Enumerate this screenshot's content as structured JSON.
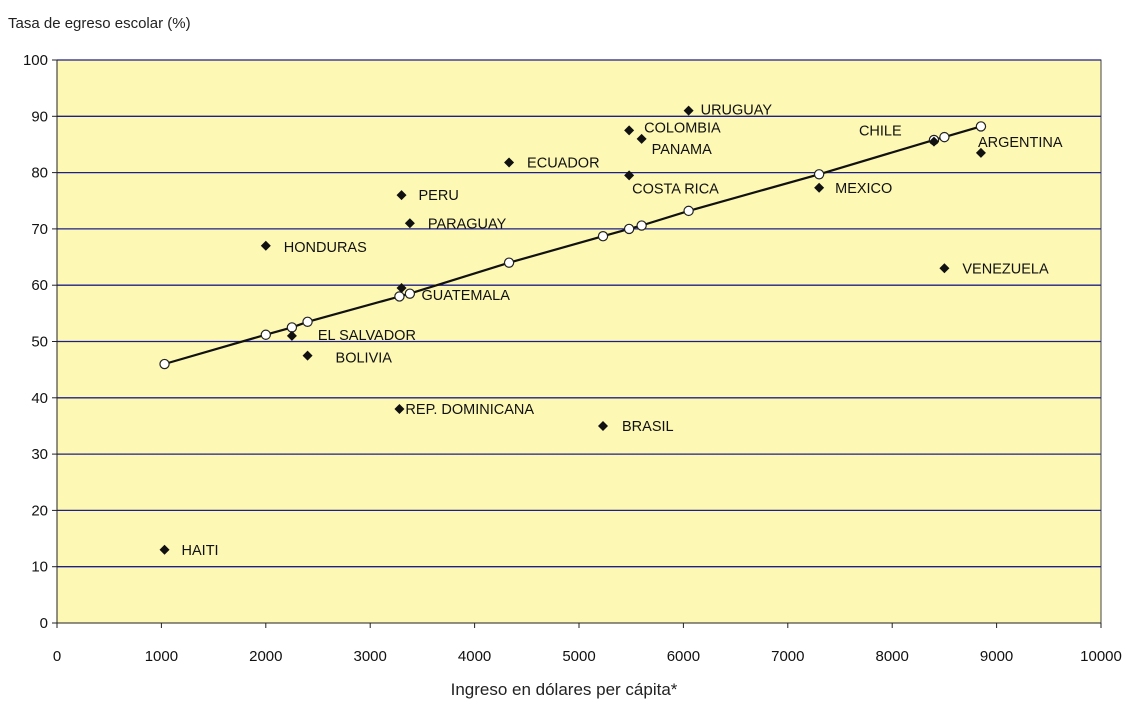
{
  "chart_data": {
    "type": "scatter",
    "title": "",
    "xlabel": "Ingreso en dólares per cápita*",
    "ylabel": "Tasa de egreso escolar (%)",
    "xlim": [
      0,
      10000
    ],
    "ylim": [
      0,
      100
    ],
    "xticks": [
      0,
      1000,
      2000,
      3000,
      4000,
      5000,
      6000,
      7000,
      8000,
      9000,
      10000
    ],
    "yticks": [
      0,
      10,
      20,
      30,
      40,
      50,
      60,
      70,
      80,
      90,
      100
    ],
    "grid": "horizontal",
    "colors": {
      "plot_background": "#fdf8b4",
      "gridline": "#1f1f8a",
      "marker": "#111111"
    },
    "series": [
      {
        "marker": "diamond",
        "points": [
          {
            "label": "URUGUAY",
            "x": 6050,
            "y": 91
          },
          {
            "label": "COLOMBIA",
            "x": 5480,
            "y": 87.5
          },
          {
            "label": "PANAMA",
            "x": 5600,
            "y": 86
          },
          {
            "label": "ECUADOR",
            "x": 4330,
            "y": 81.8
          },
          {
            "label": "COSTA RICA",
            "x": 5480,
            "y": 79.5
          },
          {
            "label": "CHILE",
            "x": 8400,
            "y": 85.5
          },
          {
            "label": "ARGENTINA",
            "x": 8850,
            "y": 83.5
          },
          {
            "label": "MEXICO",
            "x": 7300,
            "y": 77.3
          },
          {
            "label": "PERU",
            "x": 3300,
            "y": 76
          },
          {
            "label": "PARAGUAY",
            "x": 3380,
            "y": 71
          },
          {
            "label": "HONDURAS",
            "x": 2000,
            "y": 67
          },
          {
            "label": "VENEZUELA",
            "x": 8500,
            "y": 63
          },
          {
            "label": "GUATEMALA",
            "x": 3300,
            "y": 59.5
          },
          {
            "label": "EL SALVADOR",
            "x": 2250,
            "y": 51
          },
          {
            "label": "BOLIVIA",
            "x": 2400,
            "y": 47.5
          },
          {
            "label": "REP. DOMINICANA",
            "x": 3280,
            "y": 38
          },
          {
            "label": "BRASIL",
            "x": 5230,
            "y": 35
          },
          {
            "label": "HAITI",
            "x": 1030,
            "y": 13
          }
        ]
      },
      {
        "marker": "open-circle",
        "line": true,
        "points": [
          {
            "x": 1030,
            "y": 46
          },
          {
            "x": 2000,
            "y": 51.2
          },
          {
            "x": 2250,
            "y": 52.5
          },
          {
            "x": 2400,
            "y": 53.5
          },
          {
            "x": 3280,
            "y": 58
          },
          {
            "x": 3380,
            "y": 58.5
          },
          {
            "x": 4330,
            "y": 64
          },
          {
            "x": 5230,
            "y": 68.7
          },
          {
            "x": 5480,
            "y": 70
          },
          {
            "x": 5600,
            "y": 70.6
          },
          {
            "x": 6050,
            "y": 73.2
          },
          {
            "x": 7300,
            "y": 79.7
          },
          {
            "x": 8400,
            "y": 85.8
          },
          {
            "x": 8500,
            "y": 86.3
          },
          {
            "x": 8850,
            "y": 88.2
          }
        ]
      }
    ]
  }
}
